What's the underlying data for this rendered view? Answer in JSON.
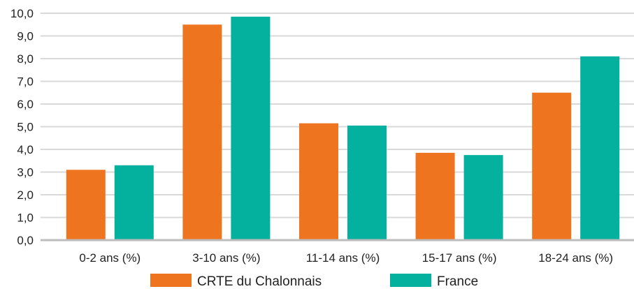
{
  "chart_data": {
    "type": "bar",
    "categories": [
      "0-2 ans (%)",
      "3-10 ans (%)",
      "11-14 ans (%)",
      "15-17 ans (%)",
      "18-24 ans (%)"
    ],
    "series": [
      {
        "name": "CRTE du Chalonnais",
        "color": "#ee741f",
        "values": [
          3.1,
          9.5,
          5.15,
          3.85,
          6.5
        ]
      },
      {
        "name": "France",
        "color": "#04b09e",
        "values": [
          3.3,
          9.85,
          5.05,
          3.75,
          8.1
        ]
      }
    ],
    "y_ticks": [
      "0,0",
      "1,0",
      "2,0",
      "3,0",
      "4,0",
      "5,0",
      "6,0",
      "7,0",
      "8,0",
      "9,0",
      "10,0"
    ],
    "ylim": [
      0,
      10
    ],
    "title": "",
    "xlabel": "",
    "ylabel": "",
    "grid": true,
    "legend_position": "bottom"
  }
}
